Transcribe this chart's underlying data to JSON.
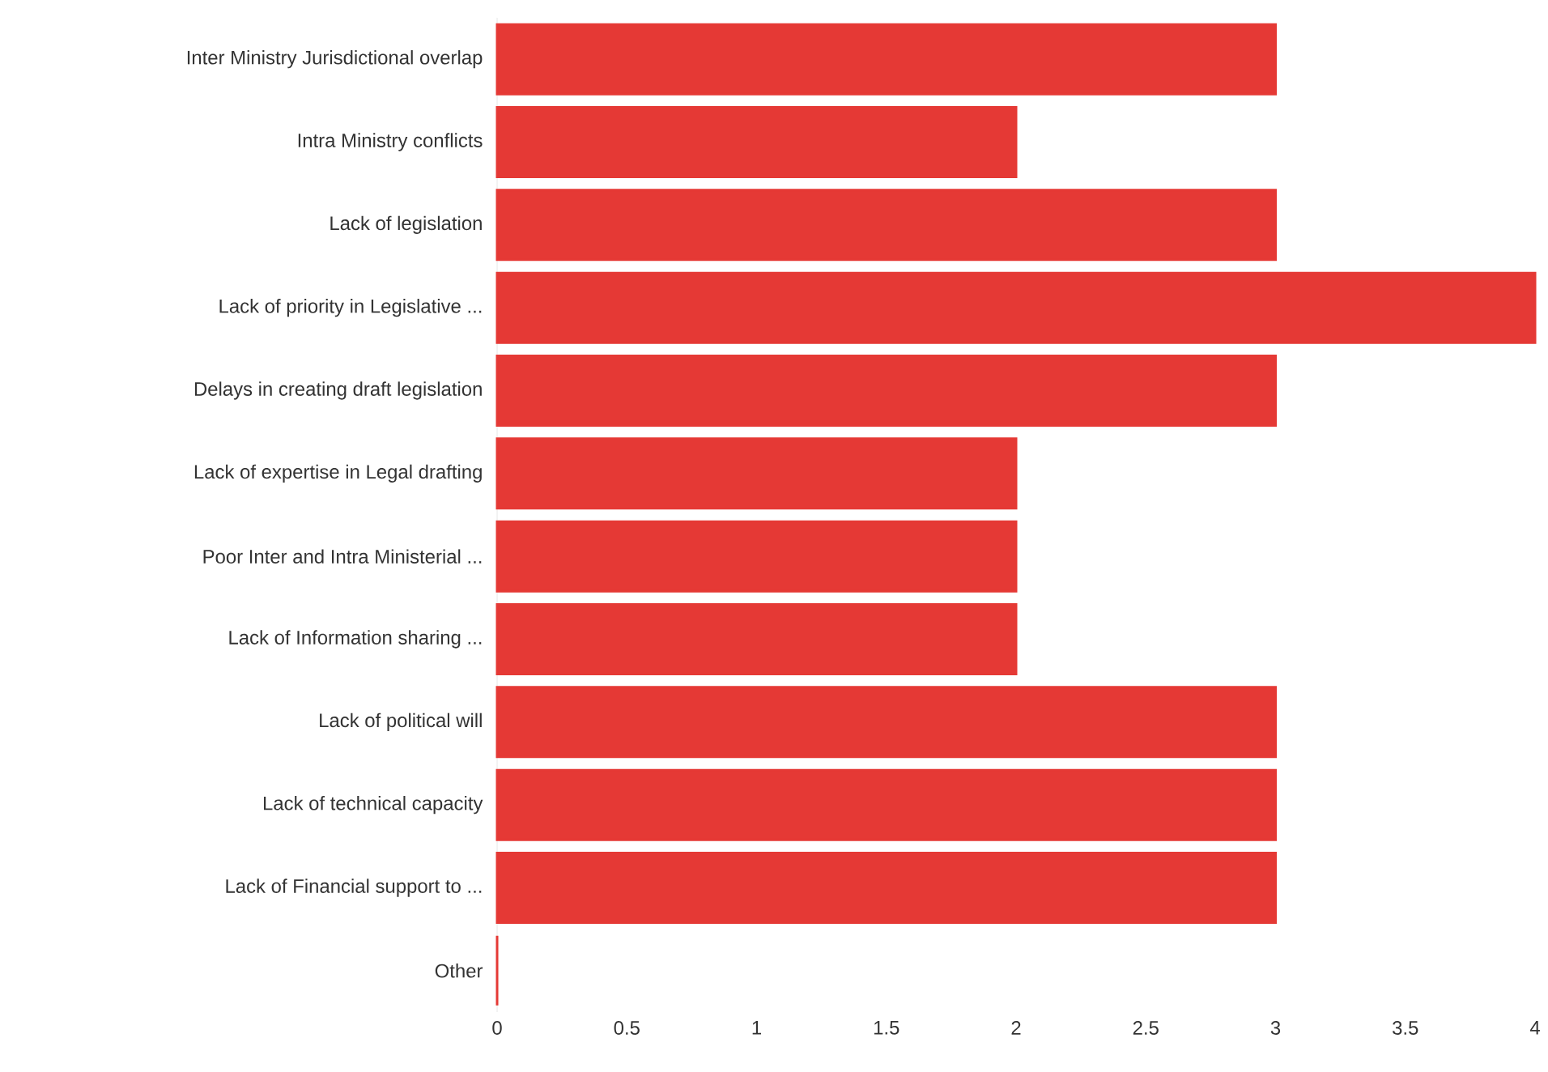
{
  "chart_data": {
    "type": "bar",
    "orientation": "horizontal",
    "categories": [
      "Inter Ministry Jurisdictional overlap",
      "Intra Ministry conflicts",
      "Lack of legislation",
      "Lack of priority in Legislative ...",
      "Delays in creating draft legislation",
      "Lack of expertise in Legal drafting",
      "Poor Inter and Intra Ministerial ...",
      "Lack of Information sharing ...",
      "Lack of political will",
      "Lack of technical capacity",
      "Lack of Financial support to ...",
      "Other"
    ],
    "values": [
      3,
      2,
      3,
      4,
      3,
      2,
      2,
      2,
      3,
      3,
      3,
      0
    ],
    "color": "#e53935",
    "xlim": [
      0,
      4
    ],
    "xticks": [
      0,
      0.5,
      1,
      1.5,
      2,
      2.5,
      3,
      3.5,
      4
    ]
  }
}
